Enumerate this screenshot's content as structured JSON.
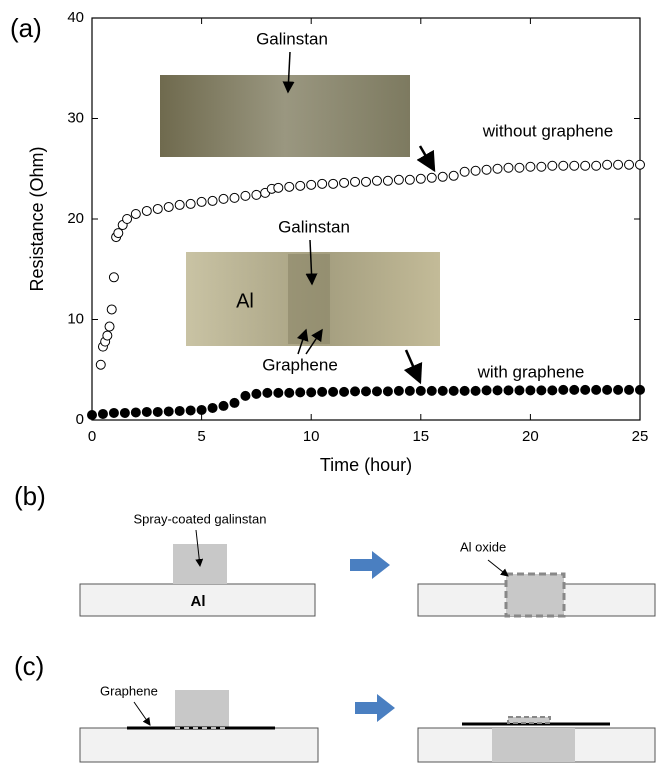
{
  "chart_data": {
    "type": "scatter",
    "panel_label": "(a)",
    "x_label": "Time (hour)",
    "y_label": "Resistance (Ohm)",
    "xlim": [
      0,
      25
    ],
    "xticks": [
      0,
      5,
      10,
      15,
      20,
      25
    ],
    "ylim": [
      0,
      40
    ],
    "yticks": [
      0,
      10,
      20,
      30,
      40
    ],
    "photo_labels": [
      "Galinstan",
      "Galinstan",
      "Al",
      "Graphene"
    ],
    "series": [
      {
        "name": "without graphene",
        "color": "#000000",
        "marker": "open",
        "x": [
          0.4,
          0.5,
          0.6,
          0.7,
          0.8,
          0.9,
          1.0,
          1.1,
          1.2,
          1.4,
          1.6,
          2,
          2.5,
          3,
          3.5,
          4,
          4.5,
          5,
          5.5,
          6,
          6.5,
          7,
          7.5,
          7.9,
          8.2,
          8.5,
          9,
          9.5,
          10,
          10.5,
          11,
          11.5,
          12,
          12.5,
          13,
          13.5,
          14,
          14.5,
          15,
          15.5,
          16,
          16.5,
          17,
          17.5,
          18,
          18.5,
          19,
          19.5,
          20,
          20.5,
          21,
          21.5,
          22,
          22.5,
          23,
          23.5,
          24,
          24.5,
          25
        ],
        "values": [
          5.5,
          7.3,
          7.8,
          8.4,
          9.3,
          11,
          14.2,
          18.2,
          18.6,
          19.4,
          20,
          20.5,
          20.8,
          21,
          21.2,
          21.4,
          21.5,
          21.7,
          21.8,
          22,
          22.1,
          22.3,
          22.4,
          22.6,
          23,
          23.1,
          23.2,
          23.3,
          23.4,
          23.5,
          23.5,
          23.6,
          23.7,
          23.7,
          23.8,
          23.8,
          23.9,
          23.9,
          24,
          24.1,
          24.2,
          24.3,
          24.7,
          24.8,
          24.9,
          25,
          25.1,
          25.1,
          25.2,
          25.2,
          25.3,
          25.3,
          25.3,
          25.3,
          25.3,
          25.4,
          25.4,
          25.4,
          25.4
        ]
      },
      {
        "name": "with graphene",
        "color": "#000000",
        "marker": "filled",
        "x": [
          0,
          0.5,
          1,
          1.5,
          2,
          2.5,
          3,
          3.5,
          4,
          4.5,
          5,
          5.5,
          6,
          6.5,
          7,
          7.5,
          8,
          8.5,
          9,
          9.5,
          10,
          10.5,
          11,
          11.5,
          12,
          12.5,
          13,
          13.5,
          14,
          14.5,
          15,
          15.5,
          16,
          16.5,
          17,
          17.5,
          18,
          18.5,
          19,
          19.5,
          20,
          20.5,
          21,
          21.5,
          22,
          22.5,
          23,
          23.5,
          24,
          24.5,
          25
        ],
        "values": [
          0.5,
          0.6,
          0.7,
          0.7,
          0.75,
          0.8,
          0.8,
          0.85,
          0.9,
          0.95,
          1.0,
          1.2,
          1.4,
          1.7,
          2.4,
          2.6,
          2.7,
          2.7,
          2.7,
          2.75,
          2.75,
          2.8,
          2.8,
          2.8,
          2.85,
          2.85,
          2.85,
          2.85,
          2.9,
          2.9,
          2.9,
          2.9,
          2.9,
          2.9,
          2.9,
          2.9,
          2.95,
          2.95,
          2.95,
          2.95,
          2.95,
          2.95,
          2.95,
          3,
          3,
          3,
          3,
          3,
          3,
          3,
          3
        ]
      }
    ]
  },
  "panel_b": {
    "label": "(b)",
    "coating": "Spray-coated galinstan",
    "substrate": "Al",
    "oxide": "Al oxide"
  },
  "panel_c": {
    "label": "(c)",
    "graphene": "Graphene"
  }
}
